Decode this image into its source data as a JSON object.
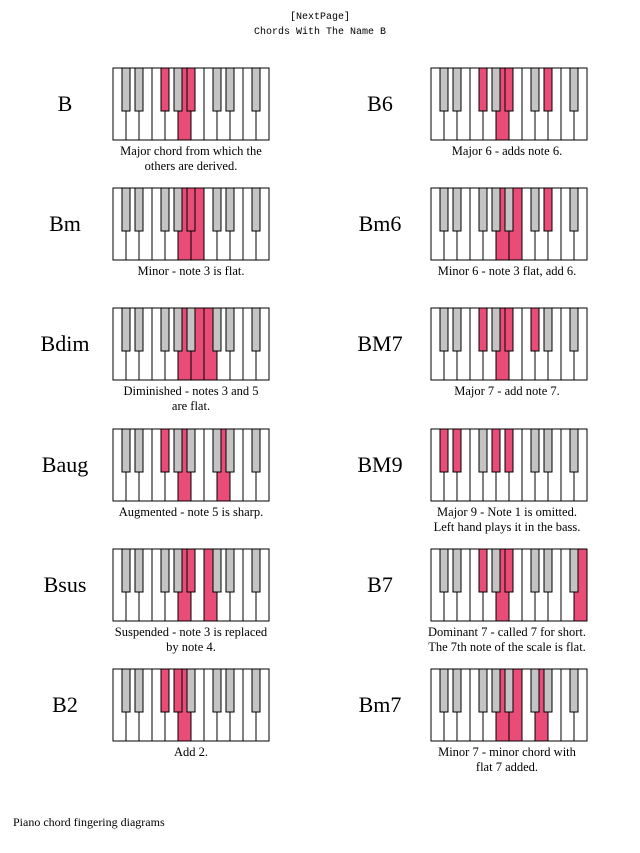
{
  "header": {
    "link": "[NextPage]",
    "title": "Chords With The Name B"
  },
  "colors": {
    "pressed": "#e84c77",
    "black_key": "#c4c4c4",
    "outline": "#000000"
  },
  "chords": [
    {
      "name": "B",
      "caption": [
        "Major chord from which the",
        "others are derived."
      ],
      "white": [
        5
      ],
      "black": [
        2,
        4
      ]
    },
    {
      "name": "B6",
      "caption": [
        "Major 6 - adds note 6."
      ],
      "white": [
        5
      ],
      "black": [
        2,
        4,
        6
      ]
    },
    {
      "name": "Bm",
      "caption": [
        "Minor - note 3 is flat."
      ],
      "white": [
        5,
        6
      ],
      "black": [
        4
      ]
    },
    {
      "name": "Bm6",
      "caption": [
        "Minor 6 - note 3 flat, add 6."
      ],
      "white": [
        5,
        6
      ],
      "black": [
        6
      ]
    },
    {
      "name": "Bdim",
      "caption": [
        "Diminished - notes 3 and 5",
        "are flat."
      ],
      "white": [
        5,
        6,
        7
      ],
      "black": []
    },
    {
      "name": "BM7",
      "caption": [
        "Major 7 - add note 7."
      ],
      "white": [
        5
      ],
      "black": [
        2,
        4,
        5
      ]
    },
    {
      "name": "Baug",
      "caption": [
        "Augmented - note 5 is sharp."
      ],
      "white": [
        5,
        8
      ],
      "black": [
        2
      ]
    },
    {
      "name": "BM9",
      "caption": [
        "Major 9 - Note 1 is omitted.",
        "Left hand plays it in the bass."
      ],
      "white": [],
      "black": [
        0,
        1,
        3,
        4
      ]
    },
    {
      "name": "Bsus",
      "caption": [
        "Suspended - note 3 is replaced",
        "by note 4."
      ],
      "white": [
        5,
        7
      ],
      "black": [
        4
      ]
    },
    {
      "name": "B7",
      "caption": [
        "Dominant 7 - called 7 for short.",
        "The 7th note of the scale is flat."
      ],
      "white": [
        5,
        11
      ],
      "black": [
        2,
        4
      ]
    },
    {
      "name": "B2",
      "caption": [
        "Add 2."
      ],
      "white": [
        5
      ],
      "black": [
        2,
        3
      ]
    },
    {
      "name": "Bm7",
      "caption": [
        "Minor 7 - minor chord with",
        "flat 7 added."
      ],
      "white": [
        5,
        6,
        8
      ],
      "black": []
    }
  ],
  "footer": "Piano chord fingering diagrams"
}
